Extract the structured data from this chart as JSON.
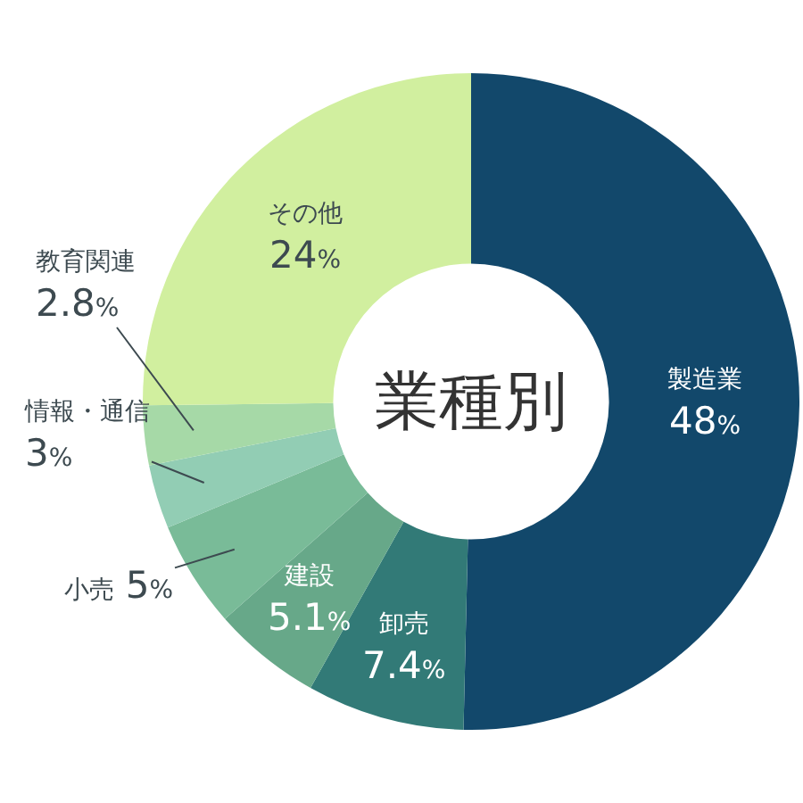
{
  "chart_data": {
    "type": "donut",
    "title": "業種別",
    "categories": [
      "製造業",
      "卸売",
      "建設",
      "小売",
      "情報・通信",
      "教育関連",
      "その他"
    ],
    "values": [
      48,
      7.4,
      5.1,
      5,
      3,
      2.8,
      24
    ],
    "colors": [
      "#12486b",
      "#327a77",
      "#67a889",
      "#79bb98",
      "#92cdb4",
      "#a6d9a7",
      "#d1ef9f"
    ],
    "value_labels": [
      "48%",
      "7.4%",
      "5.1%",
      "5%",
      "3%",
      "2.8%",
      "24%"
    ]
  }
}
